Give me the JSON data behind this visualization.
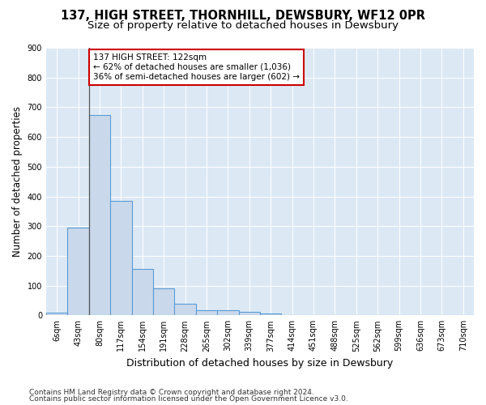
{
  "title": "137, HIGH STREET, THORNHILL, DEWSBURY, WF12 0PR",
  "subtitle": "Size of property relative to detached houses in Dewsbury",
  "xlabel": "Distribution of detached houses by size in Dewsbury",
  "ylabel": "Number of detached properties",
  "footnote1": "Contains HM Land Registry data © Crown copyright and database right 2024.",
  "footnote2": "Contains public sector information licensed under the Open Government Licence v3.0.",
  "bar_values": [
    10,
    295,
    675,
    385,
    155,
    90,
    38,
    17,
    17,
    12,
    5,
    0,
    0,
    0,
    0,
    0,
    0,
    0,
    0,
    0
  ],
  "bar_labels": [
    "6sqm",
    "43sqm",
    "80sqm",
    "117sqm",
    "154sqm",
    "191sqm",
    "228sqm",
    "265sqm",
    "302sqm",
    "339sqm",
    "377sqm",
    "414sqm",
    "451sqm",
    "488sqm",
    "525sqm",
    "562sqm",
    "599sqm",
    "636sqm",
    "673sqm",
    "710sqm"
  ],
  "bar_color": "#c9d9eb",
  "bar_edge_color": "#5b9bd5",
  "vline_index": 2,
  "vline_color": "#555555",
  "annotation_line1": "137 HIGH STREET: 122sqm",
  "annotation_line2": "← 62% of detached houses are smaller (1,036)",
  "annotation_line3": "36% of semi-detached houses are larger (602) →",
  "annotation_box_fc": "#ffffff",
  "annotation_box_ec": "#cc0000",
  "ylim_max": 900,
  "yticks": [
    0,
    100,
    200,
    300,
    400,
    500,
    600,
    700,
    800,
    900
  ],
  "plot_bg": "#dce9f5",
  "fig_bg": "#ffffff",
  "grid_color": "#ffffff",
  "title_fontsize": 10.5,
  "subtitle_fontsize": 9.5,
  "xlabel_fontsize": 9,
  "ylabel_fontsize": 8.5,
  "tick_fontsize": 7,
  "annot_fontsize": 7.5,
  "footnote_fontsize": 6.5
}
